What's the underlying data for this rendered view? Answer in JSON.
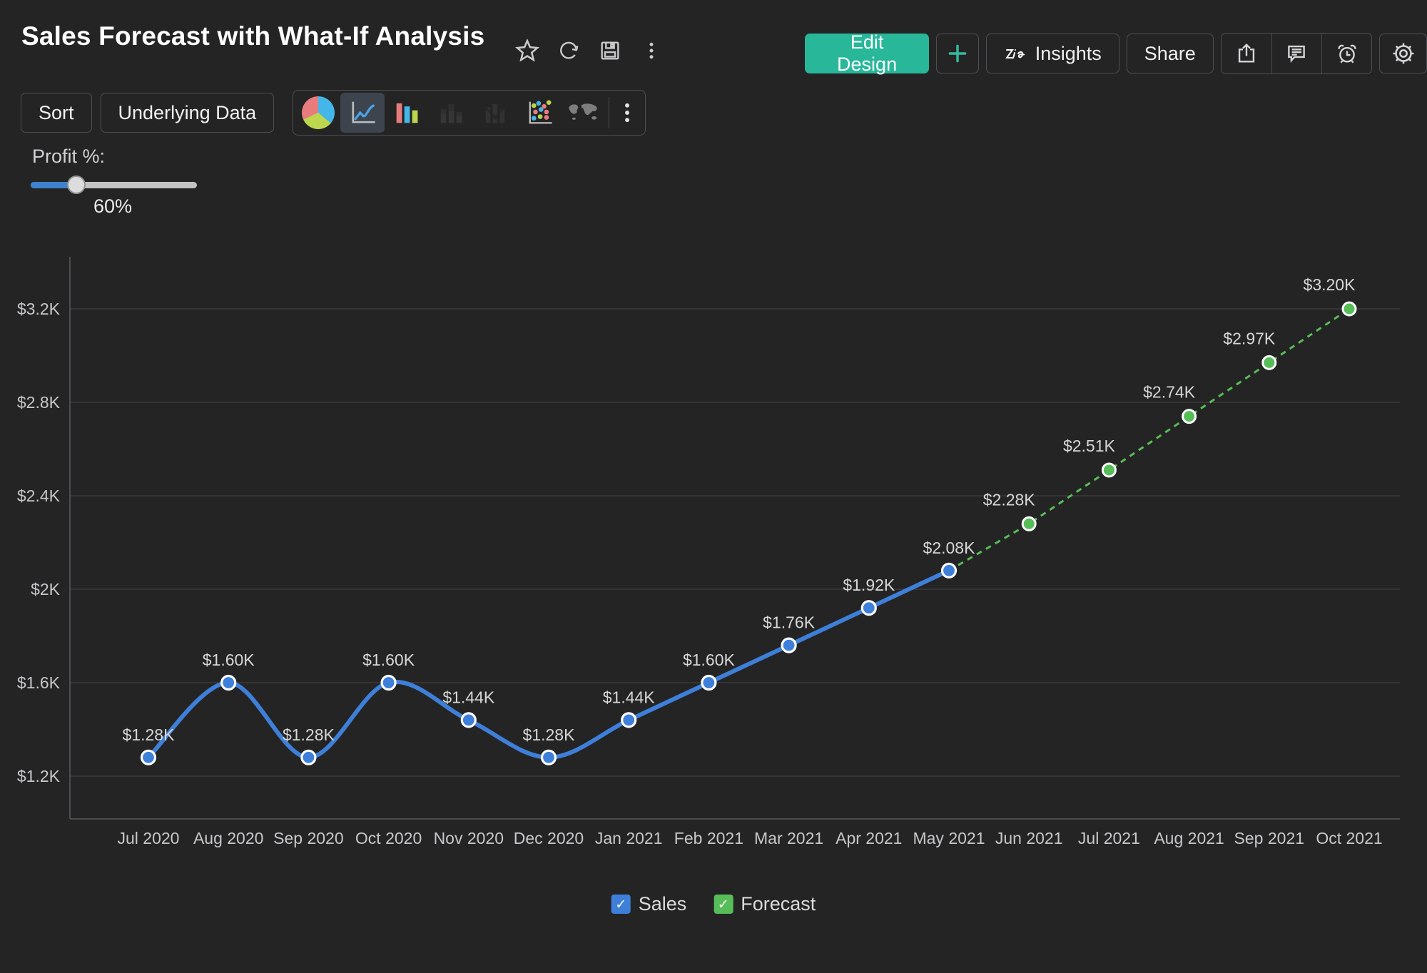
{
  "header": {
    "title": "Sales Forecast with What-If Analysis",
    "actions": {
      "edit_design": "Edit Design",
      "add": "+",
      "insights": "Insights",
      "share": "Share"
    }
  },
  "icons": {
    "title_actions": [
      "star-icon",
      "refresh-icon",
      "save-icon",
      "more-vertical-icon"
    ],
    "header_actions": [
      "plus-icon",
      "zia-icon",
      "export-icon",
      "comment-icon",
      "alarm-icon",
      "settings-gear-icon"
    ],
    "chart_type_picker": [
      "pie-chart-icon",
      "line-chart-icon",
      "bar-chart-icon",
      "stacked-bar-icon",
      "combo-chart-icon",
      "scatter-plot-icon",
      "map-chart-icon",
      "more-vertical-icon"
    ],
    "selected_chart_type": "line-chart-icon"
  },
  "toolbar": {
    "sort_label": "Sort",
    "underlying_data_label": "Underlying Data"
  },
  "whatif": {
    "label": "Profit %:",
    "value_label": "60%",
    "slider_percent": 28
  },
  "chart_data": {
    "type": "line",
    "categories": [
      "Jul 2020",
      "Aug 2020",
      "Sep 2020",
      "Oct 2020",
      "Nov 2020",
      "Dec 2020",
      "Jan 2021",
      "Feb 2021",
      "Mar 2021",
      "Apr 2021",
      "May 2021",
      "Jun 2021",
      "Jul 2021",
      "Aug 2021",
      "Sep 2021",
      "Oct 2021"
    ],
    "yticks": [
      {
        "label": "$1.2K",
        "value": 1200
      },
      {
        "label": "$1.6K",
        "value": 1600
      },
      {
        "label": "$2K",
        "value": 2000
      },
      {
        "label": "$2.4K",
        "value": 2400
      },
      {
        "label": "$2.8K",
        "value": 2800
      },
      {
        "label": "$3.2K",
        "value": 3200
      }
    ],
    "series": [
      {
        "name": "Sales",
        "color": "#3e7fd9",
        "line_style": "solid",
        "marker": "circle",
        "start_index": 0,
        "values": [
          1280,
          1600,
          1280,
          1600,
          1440,
          1280,
          1440,
          1600,
          1760,
          1920,
          2080
        ],
        "labels": [
          "$1.28K",
          "$1.60K",
          "$1.28K",
          "$1.60K",
          "$1.44K",
          "$1.28K",
          "$1.44K",
          "$1.60K",
          "$1.76K",
          "$1.92K",
          "$2.08K"
        ]
      },
      {
        "name": "Forecast",
        "color": "#57bd58",
        "line_style": "dashed",
        "marker": "circle",
        "start_index": 10,
        "values": [
          2080,
          2280,
          2510,
          2740,
          2970,
          3200
        ],
        "labels": [
          "",
          "$2.28K",
          "$2.51K",
          "$2.74K",
          "$2.97K",
          "$3.20K"
        ]
      }
    ],
    "ylim": [
      1130,
      3460
    ],
    "grid": true,
    "legend_position": "bottom"
  },
  "legend": {
    "items": [
      {
        "label": "Sales",
        "color": "#3e7fd9",
        "checked": true
      },
      {
        "label": "Forecast",
        "color": "#57bd58",
        "checked": true
      }
    ]
  },
  "colors": {
    "background": "#242424",
    "accent_teal": "#29b79a",
    "sales_blue": "#3e7fd9",
    "forecast_green": "#57bd58",
    "slider_blue": "#3d82cc",
    "gridline": "#39393b",
    "axis": "#54575b",
    "tick_text": "#c7c8ca",
    "data_label_text": "#d6d7d8"
  }
}
